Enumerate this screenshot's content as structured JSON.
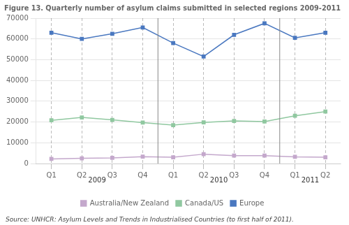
{
  "chart_data": {
    "type": "line",
    "title": "Figure 13. Quarterly number of asylum claims submitted in selected regions 2009-2011",
    "source": "Source: UNHCR: Asylum Levels and Trends in Industrialised Countries (to first half of 2011).",
    "categories": [
      "Q1",
      "Q2",
      "Q3",
      "Q4",
      "Q1",
      "Q2",
      "Q3",
      "Q4",
      "Q1",
      "Q2"
    ],
    "annotations": [
      {
        "text": "2009",
        "x": 1.5
      },
      {
        "text": "2010",
        "x": 5.5
      },
      {
        "text": "2011",
        "x": 8.5
      }
    ],
    "series": [
      {
        "name": "Australia/New Zealand",
        "color": "#c4a8cc",
        "values": [
          2200,
          2500,
          2700,
          3300,
          3000,
          4500,
          3800,
          3800,
          3200,
          3000
        ]
      },
      {
        "name": "Canada/US",
        "color": "#90c8a0",
        "values": [
          20800,
          22200,
          21000,
          19700,
          18500,
          19800,
          20500,
          20200,
          23000,
          25000
        ]
      },
      {
        "name": "Europe",
        "color": "#4a78c0",
        "values": [
          63000,
          60000,
          62500,
          65500,
          58000,
          51500,
          62000,
          67500,
          60500,
          63000
        ]
      }
    ],
    "ylim": [
      0,
      70000
    ],
    "yticks": [
      0,
      10000,
      20000,
      30000,
      40000,
      50000,
      60000,
      70000
    ],
    "grid": true,
    "legend": "bottom",
    "marker": "square",
    "line_style": "solid"
  }
}
